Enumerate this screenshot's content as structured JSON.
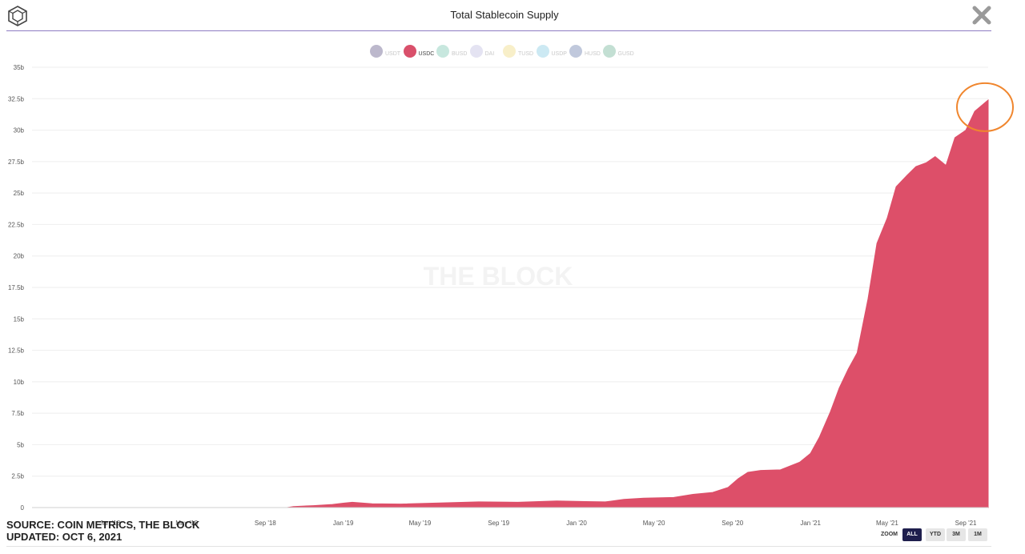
{
  "header": {
    "title": "Total Stablecoin Supply"
  },
  "legend": [
    {
      "label": "USDT",
      "color": "#bcb8cc",
      "active": false
    },
    {
      "label": "USDC",
      "color": "#d9506b",
      "active": true
    },
    {
      "label": "BUSD",
      "color": "#c7e7de",
      "active": false
    },
    {
      "label": "DAI",
      "color": "#e4e3f2",
      "active": false
    },
    {
      "label": "TUSD",
      "color": "#f8efc9",
      "active": false
    },
    {
      "label": "USDP",
      "color": "#cce9f3",
      "active": false
    },
    {
      "label": "HUSD",
      "color": "#c0c8dc",
      "active": false
    },
    {
      "label": "GUSD",
      "color": "#c3dfd3",
      "active": false
    }
  ],
  "watermark": "THE BLOCK",
  "source": {
    "line1": "SOURCE: COIN METRICS, THE BLOCK",
    "line2": "UPDATED: OCT 6, 2021"
  },
  "zoom": {
    "label": "ZOOM",
    "buttons": [
      {
        "label": "ALL",
        "active": true
      },
      {
        "label": "YTD",
        "active": false
      },
      {
        "label": "3M",
        "active": false
      },
      {
        "label": "1M",
        "active": false
      }
    ]
  },
  "colors": {
    "area": "#dd4f69",
    "highlight_circle": "#f0862e",
    "grid": "#eeeeee"
  },
  "chart_data": {
    "type": "area",
    "title": "Total Stablecoin Supply",
    "series": [
      {
        "name": "USDC",
        "color": "#dd4f69",
        "points": [
          [
            "2017-09-01",
            0
          ],
          [
            "2018-09-01",
            0
          ],
          [
            "2018-10-05",
            0.0
          ],
          [
            "2018-10-15",
            0.08
          ],
          [
            "2018-11-15",
            0.15
          ],
          [
            "2018-12-15",
            0.25
          ],
          [
            "2019-01-01",
            0.35
          ],
          [
            "2019-01-15",
            0.42
          ],
          [
            "2019-02-15",
            0.3
          ],
          [
            "2019-04-01",
            0.28
          ],
          [
            "2019-06-01",
            0.36
          ],
          [
            "2019-08-01",
            0.45
          ],
          [
            "2019-10-01",
            0.42
          ],
          [
            "2019-12-01",
            0.52
          ],
          [
            "2020-01-15",
            0.48
          ],
          [
            "2020-02-15",
            0.45
          ],
          [
            "2020-03-15",
            0.65
          ],
          [
            "2020-04-15",
            0.75
          ],
          [
            "2020-06-01",
            0.8
          ],
          [
            "2020-07-01",
            1.05
          ],
          [
            "2020-08-01",
            1.2
          ],
          [
            "2020-08-25",
            1.6
          ],
          [
            "2020-09-10",
            2.3
          ],
          [
            "2020-09-25",
            2.8
          ],
          [
            "2020-10-15",
            2.95
          ],
          [
            "2020-11-15",
            3.0
          ],
          [
            "2020-12-15",
            3.6
          ],
          [
            "2021-01-01",
            4.3
          ],
          [
            "2021-01-15",
            5.6
          ],
          [
            "2021-02-01",
            7.6
          ],
          [
            "2021-02-15",
            9.5
          ],
          [
            "2021-03-01",
            11.0
          ],
          [
            "2021-03-15",
            12.3
          ],
          [
            "2021-04-01",
            16.6
          ],
          [
            "2021-04-15",
            21.0
          ],
          [
            "2021-05-01",
            23.0
          ],
          [
            "2021-05-15",
            25.5
          ],
          [
            "2021-06-01",
            26.4
          ],
          [
            "2021-06-15",
            27.1
          ],
          [
            "2021-07-01",
            27.4
          ],
          [
            "2021-07-15",
            27.9
          ],
          [
            "2021-08-01",
            27.2
          ],
          [
            "2021-08-15",
            29.4
          ],
          [
            "2021-09-01",
            30.0
          ],
          [
            "2021-09-15",
            31.5
          ],
          [
            "2021-10-06",
            32.4
          ]
        ]
      }
    ],
    "x_ticks": [
      "Jan '18",
      "May '18",
      "Sep '18",
      "Jan '19",
      "May '19",
      "Sep '19",
      "Jan '20",
      "May '20",
      "Sep '20",
      "Jan '21",
      "May '21",
      "Sep '21"
    ],
    "x_tick_dates": [
      "2018-01-01",
      "2018-05-01",
      "2018-09-01",
      "2019-01-01",
      "2019-05-01",
      "2019-09-01",
      "2020-01-01",
      "2020-05-01",
      "2020-09-01",
      "2021-01-01",
      "2021-05-01",
      "2021-09-01"
    ],
    "xlim": [
      "2017-09-01",
      "2021-10-06"
    ],
    "y_ticks": [
      "0",
      "2.5b",
      "5b",
      "7.5b",
      "10b",
      "12.5b",
      "15b",
      "17.5b",
      "20b",
      "22.5b",
      "25b",
      "27.5b",
      "30b",
      "32.5b",
      "35b"
    ],
    "ylim": [
      0,
      35
    ],
    "grid": true,
    "legend_position": "top-center",
    "annotation": "orange circle around latest peak"
  }
}
